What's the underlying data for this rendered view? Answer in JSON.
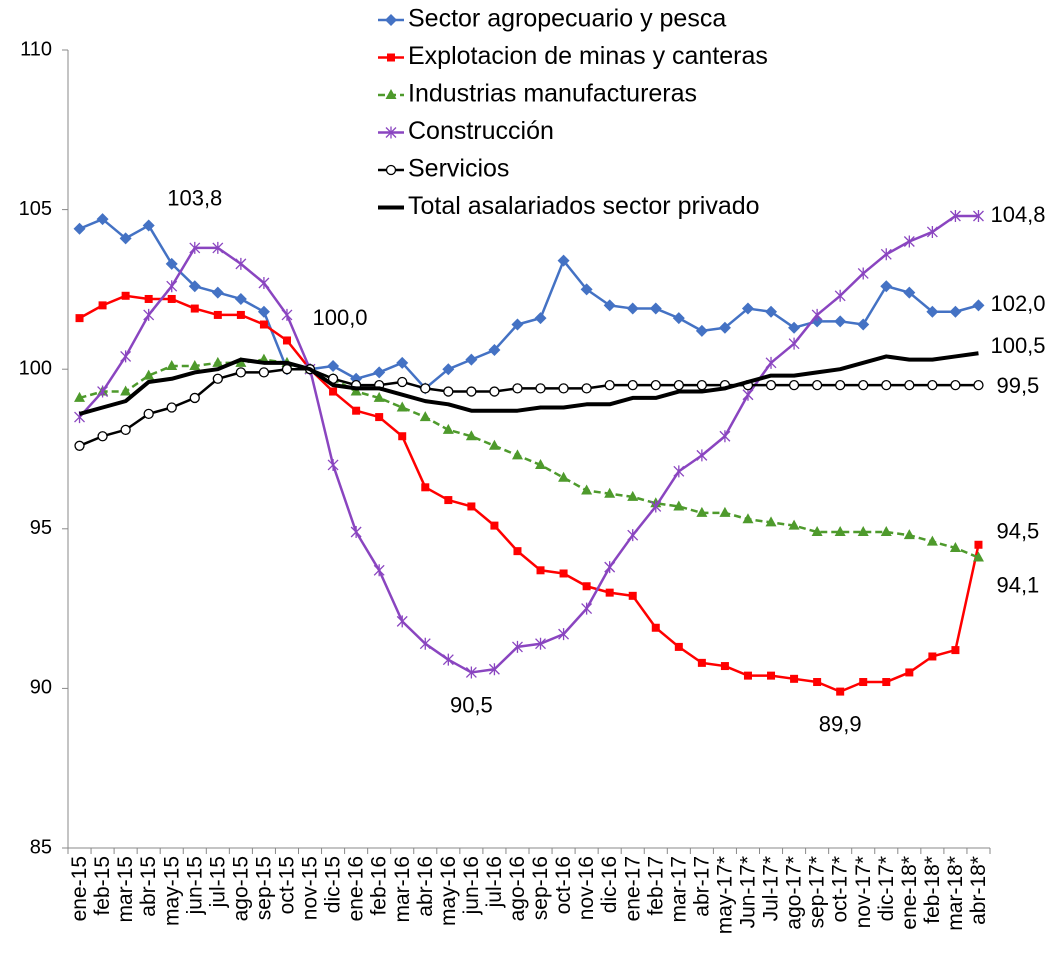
{
  "chart_data": {
    "type": "line",
    "categories": [
      "ene-15",
      "feb-15",
      "mar-15",
      "abr-15",
      "may-15",
      "jun-15",
      "jul-15",
      "ago-15",
      "sep-15",
      "oct-15",
      "nov-15",
      "dic-15",
      "ene-16",
      "feb-16",
      "mar-16",
      "abr-16",
      "may-16",
      "jun-16",
      "jul-16",
      "ago-16",
      "sep-16",
      "oct-16",
      "nov-16",
      "dic-16",
      "ene-17",
      "feb-17",
      "mar-17",
      "abr-17",
      "may-17*",
      "Jun-17*",
      "Jul-17*",
      "ago-17*",
      "sep-17*",
      "oct-17*",
      "nov-17*",
      "dic-17*",
      "ene-18*",
      "feb-18*",
      "mar-18*",
      "abr-18*"
    ],
    "ylim": [
      85,
      110
    ],
    "yticks": [
      85,
      90,
      95,
      100,
      105,
      110
    ],
    "series": [
      {
        "name": "Sector agropecuario y pesca",
        "color": "#4472c4",
        "marker": "diamond",
        "values": [
          104.4,
          104.7,
          104.1,
          104.5,
          103.3,
          102.6,
          102.4,
          102.2,
          101.8,
          100.0,
          100.0,
          100.1,
          99.7,
          99.9,
          100.2,
          99.4,
          100.0,
          100.3,
          100.6,
          101.4,
          101.6,
          103.4,
          102.5,
          102.0,
          101.9,
          101.9,
          101.6,
          101.2,
          101.3,
          101.9,
          101.8,
          101.3,
          101.5,
          101.5,
          101.4,
          102.6,
          102.4,
          101.8,
          101.8,
          102.0
        ],
        "value_labels": [
          null,
          null,
          null,
          null,
          null,
          null,
          null,
          null,
          null,
          null,
          null,
          null,
          null,
          null,
          null,
          null,
          null,
          null,
          null,
          null,
          null,
          null,
          null,
          null,
          null,
          null,
          null,
          null,
          null,
          null,
          null,
          null,
          null,
          null,
          null,
          null,
          null,
          null,
          null,
          "102,0"
        ]
      },
      {
        "name": "Explotacion de minas y canteras",
        "color": "#ff0000",
        "marker": "square",
        "values": [
          101.6,
          102.0,
          102.3,
          102.2,
          102.2,
          101.9,
          101.7,
          101.7,
          101.4,
          100.9,
          100.0,
          99.3,
          98.7,
          98.5,
          97.9,
          96.3,
          95.9,
          95.7,
          95.1,
          94.3,
          93.7,
          93.6,
          93.2,
          93.0,
          92.9,
          91.9,
          91.3,
          90.8,
          90.7,
          90.4,
          90.4,
          90.3,
          90.2,
          89.9,
          90.2,
          90.2,
          90.5,
          91.0,
          91.2,
          94.5
        ],
        "value_labels": [
          null,
          null,
          null,
          null,
          null,
          null,
          null,
          null,
          null,
          null,
          null,
          null,
          null,
          null,
          null,
          null,
          null,
          null,
          null,
          null,
          null,
          null,
          null,
          null,
          null,
          null,
          null,
          null,
          null,
          null,
          null,
          null,
          null,
          "89,9",
          null,
          null,
          null,
          null,
          null,
          "94,5"
        ]
      },
      {
        "name": "Industrias manufactureras",
        "color": "#4e9a2c",
        "marker": "triangle",
        "dashed": true,
        "values": [
          99.1,
          99.3,
          99.3,
          99.8,
          100.1,
          100.1,
          100.2,
          100.2,
          100.3,
          100.2,
          100.0,
          99.7,
          99.3,
          99.1,
          98.8,
          98.5,
          98.1,
          97.9,
          97.6,
          97.3,
          97.0,
          96.6,
          96.2,
          96.1,
          96.0,
          95.8,
          95.7,
          95.5,
          95.5,
          95.3,
          95.2,
          95.1,
          94.9,
          94.9,
          94.9,
          94.9,
          94.8,
          94.6,
          94.4,
          94.1
        ],
        "value_labels": [
          null,
          null,
          null,
          null,
          null,
          null,
          null,
          null,
          null,
          null,
          null,
          null,
          null,
          null,
          null,
          null,
          null,
          null,
          null,
          null,
          null,
          null,
          null,
          null,
          null,
          null,
          null,
          null,
          null,
          null,
          null,
          null,
          null,
          null,
          null,
          null,
          null,
          null,
          null,
          "94,1"
        ]
      },
      {
        "name": "Construcción",
        "color": "#8a45c0",
        "marker": "asterisk",
        "values": [
          98.5,
          99.3,
          100.4,
          101.7,
          102.6,
          103.8,
          103.8,
          103.3,
          102.7,
          101.7,
          100.0,
          97.0,
          94.9,
          93.7,
          92.1,
          91.4,
          90.9,
          90.5,
          90.6,
          91.3,
          91.4,
          91.7,
          92.5,
          93.8,
          94.8,
          95.7,
          96.8,
          97.3,
          97.9,
          99.2,
          100.2,
          100.8,
          101.7,
          102.3,
          103.0,
          103.6,
          104.0,
          104.3,
          104.8,
          104.8
        ],
        "value_labels": [
          null,
          null,
          null,
          null,
          null,
          "103,8",
          null,
          null,
          null,
          null,
          null,
          null,
          null,
          null,
          null,
          null,
          null,
          "90,5",
          null,
          null,
          null,
          null,
          null,
          null,
          null,
          null,
          null,
          null,
          null,
          null,
          null,
          null,
          null,
          null,
          null,
          null,
          null,
          null,
          null,
          "104,8"
        ]
      },
      {
        "name": "Servicios",
        "color": "#000000",
        "marker": "circle",
        "values": [
          97.6,
          97.9,
          98.1,
          98.6,
          98.8,
          99.1,
          99.7,
          99.9,
          99.9,
          100.0,
          100.0,
          99.7,
          99.5,
          99.5,
          99.6,
          99.4,
          99.3,
          99.3,
          99.3,
          99.4,
          99.4,
          99.4,
          99.4,
          99.5,
          99.5,
          99.5,
          99.5,
          99.5,
          99.5,
          99.5,
          99.5,
          99.5,
          99.5,
          99.5,
          99.5,
          99.5,
          99.5,
          99.5,
          99.5,
          99.5
        ],
        "value_labels": [
          null,
          null,
          null,
          null,
          null,
          null,
          null,
          null,
          null,
          null,
          null,
          null,
          null,
          null,
          null,
          null,
          null,
          null,
          null,
          null,
          null,
          null,
          null,
          null,
          null,
          null,
          null,
          null,
          null,
          null,
          null,
          null,
          null,
          null,
          null,
          null,
          null,
          null,
          null,
          "99,5"
        ]
      },
      {
        "name": "Total asalariados sector privado",
        "color": "#000000",
        "marker": "none",
        "thick": true,
        "values": [
          98.6,
          98.8,
          99.0,
          99.6,
          99.7,
          99.9,
          100.0,
          100.3,
          100.2,
          100.2,
          100.0,
          99.5,
          99.4,
          99.4,
          99.2,
          99.0,
          98.9,
          98.7,
          98.7,
          98.7,
          98.8,
          98.8,
          98.9,
          98.9,
          99.1,
          99.1,
          99.3,
          99.3,
          99.4,
          99.6,
          99.8,
          99.8,
          99.9,
          100.0,
          100.2,
          100.4,
          100.3,
          100.3,
          100.4,
          100.5
        ],
        "value_labels": [
          null,
          null,
          null,
          null,
          null,
          null,
          null,
          null,
          null,
          null,
          "100,0",
          null,
          null,
          null,
          null,
          null,
          null,
          null,
          null,
          null,
          null,
          null,
          null,
          null,
          null,
          null,
          null,
          null,
          null,
          null,
          null,
          null,
          null,
          null,
          null,
          null,
          null,
          null,
          null,
          "100,5"
        ]
      }
    ]
  }
}
